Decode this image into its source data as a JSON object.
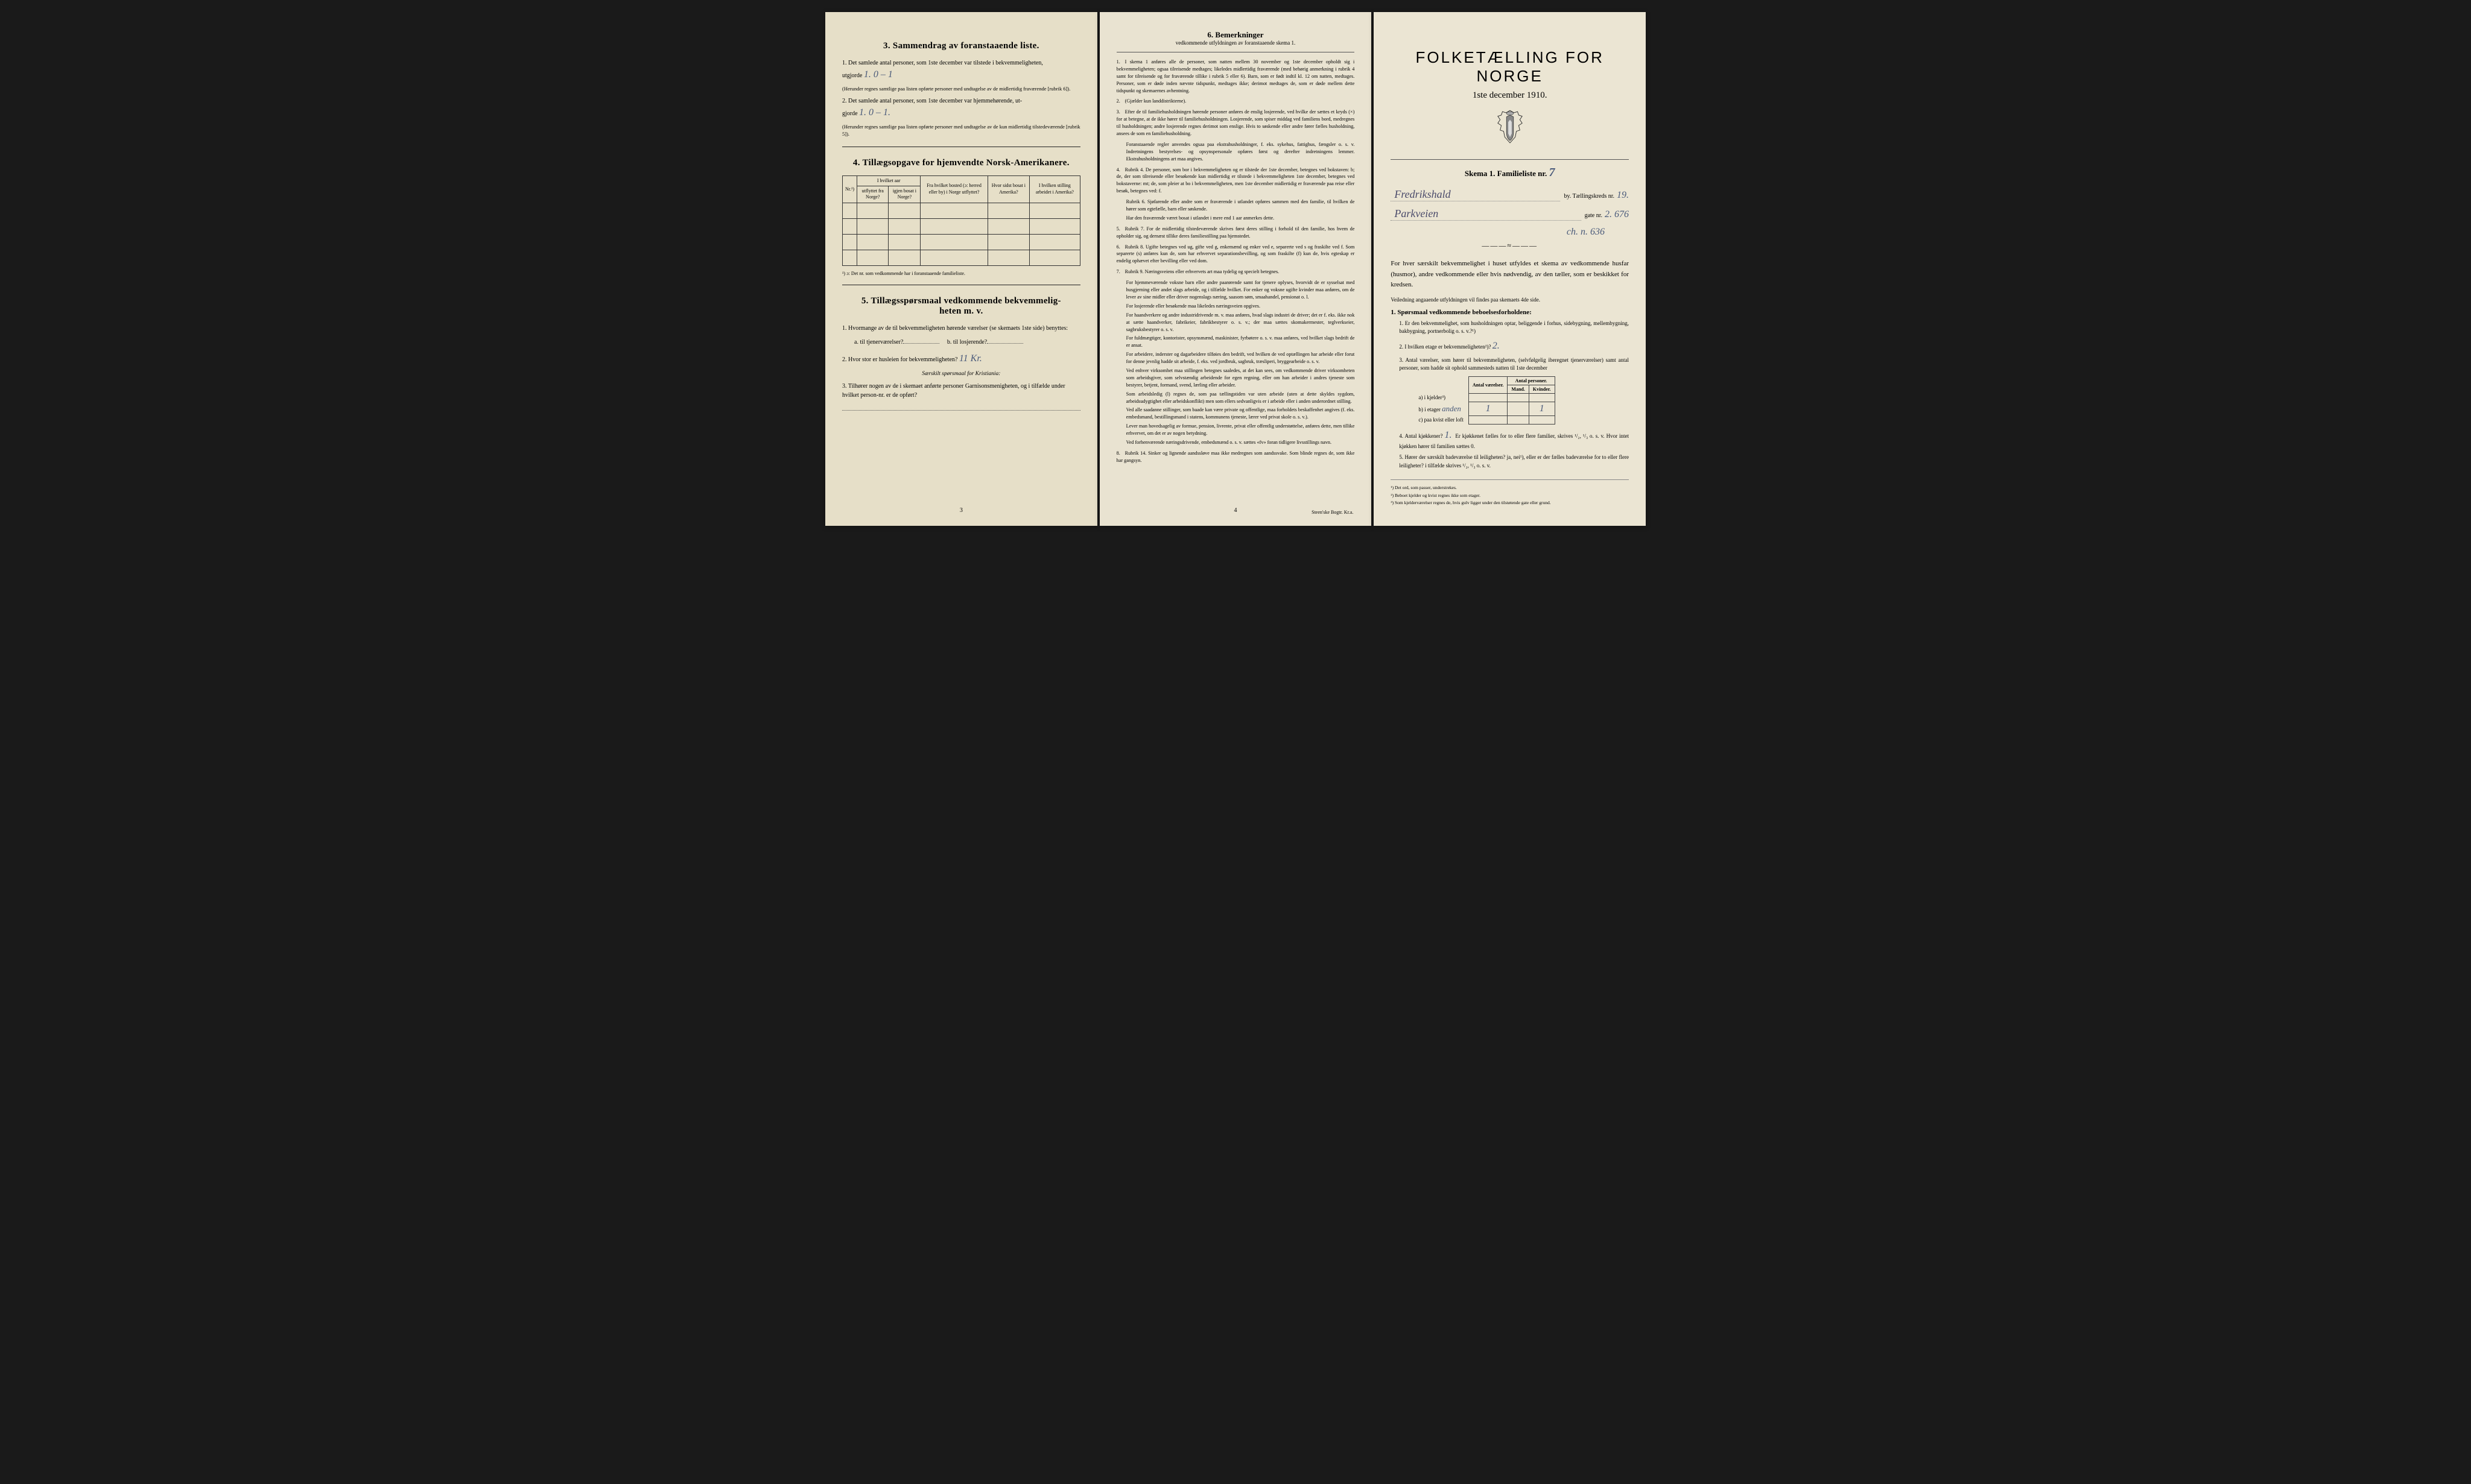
{
  "colors": {
    "paper1": "#e6dfc8",
    "paper2": "#e9e3d1",
    "paper3": "#ebe5d3",
    "ink": "#1a1a1a",
    "handwriting": "#4a5a7a"
  },
  "page1": {
    "section3": {
      "title": "3.   Sammendrag av foranstaaende liste.",
      "item1_pre": "1.  Det samlede antal personer, som 1ste december var tilstede i bekvemmeligheten,",
      "item1_label": "utgjorde",
      "item1_hw": "1.        0 – 1",
      "item1_note": "(Herunder regnes samtlige paa listen opførte personer med undtagelse av de midlertidig fraværende [rubrik 6]).",
      "item2_pre": "2.  Det samlede antal personer, som 1ste december var hjemmehørende, ut-",
      "item2_label": "gjorde",
      "item2_hw": "1.        0 – 1.",
      "item2_note": "(Herunder regnes samtlige paa listen opførte personer med undtagelse av de kun midlertidig tilstedeværende [rubrik 5])."
    },
    "section4": {
      "title": "4.   Tillægsopgave for hjemvendte Norsk-Amerikanere.",
      "headers": {
        "nr": "Nr.¹)",
        "col1_top": "I hvilket aar",
        "col1a": "utflyttet fra Norge?",
        "col1b": "igjen bosat i Norge?",
        "col2": "Fra hvilket bosted (ɔ: herred eller by) i Norge utflyttet?",
        "col3": "Hvor sidst bosat i Amerika?",
        "col4": "I hvilken stilling arbeidet i Amerika?"
      },
      "footnote": "¹) ɔ: Det nr. som vedkommende har i foranstaaende familieliste."
    },
    "section5": {
      "title": "5.   Tillægsspørsmaal vedkommende bekvemmelig-\nheten m. v.",
      "item1": "1. Hvormange av de til bekvemmeligheten hørende værelser (se skemaets 1ste side) benyttes:",
      "item1a": "a. til tjenerværelser?",
      "item1b": "b. til losjerende?",
      "item2": "2. Hvor stor er husleien for bekvemmeligheten?",
      "item2_hw": "11 Kr.",
      "kristiania": "Særskilt spørsmaal for Kristiania:",
      "item3": "3. Tilhører nogen av de i skemaet anførte personer Garnisonsmenigheten, og i tilfælde under hvilket person-nr. er de opført?"
    },
    "pagenum": "3"
  },
  "page2": {
    "title": "6.   Bemerkninger",
    "subtitle": "vedkommende utfyldningen av foranstaaende skema 1.",
    "items": [
      {
        "n": "1.",
        "t": "I skema 1 anføres alle de personer, som natten mellem 30 november og 1ste december opholdt sig i bekvemmeligheten; ogsaa tilreisende medtages; likeledes midlertidig fraværende (med behørig anmerkning i rubrik 4 samt for tilreisende og for fraværende tillike i rubrik 5 eller 6). Barn, som er født indtil kl. 12 om natten, medtages. Personer, som er døde inden nævnte tidspunkt, medtages ikke; derimot medtages de, som er døde mellem dette tidspunkt og skemaernes avhentning."
      },
      {
        "n": "2.",
        "t": "(Gjælder kun landdistrikterne)."
      },
      {
        "n": "3.",
        "t": "Efter de til familiehusholdningen hørende personer anføres de enslig losjerende, ved hvilke der sættes et kryds (×) for at betegne, at de ikke hører til familiehusholdningen. Losjerende, som spiser middag ved familiens bord, medregnes til husholdningen; andre losjerende regnes derimot som enslige. Hvis to søskende eller andre fører fælles husholdning, ansees de som en familiehusholdning."
      },
      {
        "n": "",
        "t": "Foranstaaende regler anvendes ogsaa paa ekstrahusholdninger, f. eks. sykehus, fattighus, fængsler o. s. v. Indretningens bestyrelses- og opsynspersonale opføres først og derefter indretningens lemmer. Ekstrahusholdningens art maa angives.",
        "para": true
      },
      {
        "n": "4.",
        "t": "Rubrik 4. De personer, som bor i bekvemmeligheten og er tilstede der 1ste december, betegnes ved bokstaven: b; de, der som tilreisende eller besøkende kun midlertidig er tilstede i bekvemmeligheten 1ste december, betegnes ved bokstaverne: mt; de, som pleier at bo i bekvemmeligheten, men 1ste december midlertidig er fraværende paa reise eller besøk, betegnes ved: f."
      },
      {
        "n": "",
        "t": "Rubrik 6. Sjøfarende eller andre som er fraværende i utlandet opføres sammen med den familie, til hvilken de hører som egtefælle, barn eller søskende.",
        "para": true
      },
      {
        "n": "",
        "t": "Har den fraværende været bosat i utlandet i mere end 1 aar anmerkes dette.",
        "para": true
      },
      {
        "n": "5.",
        "t": "Rubrik 7. For de midlertidig tilstedeværende skrives først deres stilling i forhold til den familie, hos hvem de opholder sig, og dernæst tillike deres familiestilling paa hjemstedet."
      },
      {
        "n": "6.",
        "t": "Rubrik 8. Ugifte betegnes ved ug, gifte ved g, enkemænd og enker ved e, separerte ved s og fraskilte ved f. Som separerte (s) anføres kun de, som har erhvervet separationsbevilling, og som fraskilte (f) kun de, hvis egteskap er endelig ophævet efter bevilling eller ved dom."
      },
      {
        "n": "7.",
        "t": "Rubrik 9. Næringsveiens eller erhvervets art maa tydelig og specielt betegnes."
      },
      {
        "n": "",
        "t": "For hjemmeværende voksne barn eller andre paarørende samt for tjenere oplyses, hvorvidt de er sysselsat med husgjerning eller andet slags arbeide, og i tilfælde hvilket. For enker og voksne ugifte kvinder maa anføres, om de lever av sine midler eller driver nogenslags næring, saasom søm, smaahandel, pensionat o. l.",
        "para": true
      },
      {
        "n": "",
        "t": "For losjerende eller besøkende maa likeledes næringsveien opgives.",
        "para": true
      },
      {
        "n": "",
        "t": "For haandverkere og andre industridrivende m. v. maa anføres, hvad slags industri de driver; det er f. eks. ikke nok at sætte haandverker, fabrikeier, fabrikbestyrer o. s. v.; der maa sættes skomakermester, teglverkseier, sagbruksbestyrer o. s. v.",
        "para": true
      },
      {
        "n": "",
        "t": "For fuldmægtiger, kontorister, opsynsmænd, maskinister, fyrbøtere o. s. v. maa anføres, ved hvilket slags bedrift de er ansat.",
        "para": true
      },
      {
        "n": "",
        "t": "For arbeidere, inderster og dagarbeidere tilføies den bedrift, ved hvilken de ved optællingen har arbeide eller forut for denne jevnlig hadde sit arbeide, f. eks. ved jordbruk, sagbruk, træsliperi, bryggearbeide o. s. v.",
        "para": true
      },
      {
        "n": "",
        "t": "Ved enhver virksomhet maa stillingen betegnes saaledes, at det kan sees, om vedkommende driver virksomheten som arbeidsgiver, som selvstændig arbeidende for egen regning, eller om han arbeider i andres tjeneste som bestyrer, betjent, formand, svend, lærling eller arbeider.",
        "para": true
      },
      {
        "n": "",
        "t": "Som arbeidsledig (l) regnes de, som paa tællingstiden var uten arbeide (uten at dette skyldes sygdom, arbeidsudygtighet eller arbeidskonflikt) men som ellers sedvanligvis er i arbeide eller i anden underordnet stilling.",
        "para": true
      },
      {
        "n": "",
        "t": "Ved alle saadanne stillinger, som baade kan være private og offentlige, maa forholdets beskaffenhet angives (f. eks. embedsmand, bestillingsmand i statens, kommunens tjeneste, lærer ved privat skole o. s. v.).",
        "para": true
      },
      {
        "n": "",
        "t": "Lever man hovedsagelig av formue, pension, livrente, privat eller offentlig understøttelse, anføres dette, men tillike erhvervet, om det er av nogen betydning.",
        "para": true
      },
      {
        "n": "",
        "t": "Ved forhenværende næringsdrivende, embedsmænd o. s. v. sættes «fv» foran tidligere livsstillings navn.",
        "para": true
      },
      {
        "n": "8.",
        "t": "Rubrik 14. Sinker og lignende aandssløve maa ikke medregnes som aandssvake. Som blinde regnes de, som ikke har gangsyn."
      }
    ],
    "pagenum": "4",
    "printer": "Steen'ske Bogtr.  Kr.a."
  },
  "page3": {
    "main_title": "FOLKETÆLLING FOR NORGE",
    "sub_title": "1ste december 1910.",
    "skema": "Skema 1.   Familieliste nr.",
    "skema_hw": "7",
    "by_hw": "Fredrikshald",
    "by_lbl": "by.  Tællingskreds nr.",
    "kreds_hw": "19.",
    "gate_hw": "Parkveien",
    "gate_lbl": "gate nr.",
    "gatenr_hw": "2.  676",
    "extra_hw": "ch. n. 636",
    "ornament": "———≈———",
    "intro": "For hver særskilt bekvemmelighet i huset utfyldes et skema av vedkommende husfar (husmor), andre vedkommende eller hvis nødvendig, av den tæller, som er beskikket for kredsen.",
    "veil": "Veiledning angaaende utfyldningen vil findes paa skemaets 4de side.",
    "q1_title": "1. Spørsmaal vedkommende beboelsesforholdene:",
    "q1": "1. Er den bekvemmelighet, som husholdningen optar, beliggende i forhus, sidebygning, mellembygning, bakbygning, portnerbolig o. s. v.?¹)",
    "q2": "2. I hvilken etage er bekvemmeligheten²)?",
    "q2_hw": "2.",
    "q3": "3. Antal værelser, som hører til bekvemmeligheten, (selvfølgelig iberegnet tjenerværelser) samt antal personer, som hadde sit ophold sammesteds natten til 1ste december",
    "rooms_table": {
      "headers": [
        "",
        "Antal værelser.",
        "Antal personer."
      ],
      "sub_headers": [
        "",
        "",
        "Mand.",
        "Kvinder."
      ],
      "rows": [
        {
          "lbl": "a) i kjelder³)",
          "v": "",
          "m": "",
          "k": ""
        },
        {
          "lbl": "b) i etager",
          "hw": "anden",
          "v": "1",
          "m": "",
          "k": "1"
        },
        {
          "lbl": "c) paa kvist eller loft",
          "v": "",
          "m": "",
          "k": ""
        }
      ]
    },
    "q4": "4. Antal kjøkkener?",
    "q4_hw": "1.",
    "q4_rest": "Er kjøkkenet fælles for to eller flere familier, skrives ¹/₂, ¹/₃ o. s. v.  Hvor intet kjøkken hører til familien sættes 0.",
    "q5": "5. Hører der særskilt badeværelse til leiligheten? ja, nei¹), eller er der fælles badeværelse for to eller flere leiligheter? i tilfælde skrives ¹/₂, ¹/₃ o. s. v.",
    "footnotes": [
      "¹) Det ord, som passer, understrekes.",
      "²) Beboet kjelder og kvist regnes ikke som etager.",
      "³) Som kjelderværelser regnes de, hvis gulv ligger under den tilstøtende gate eller grund."
    ]
  }
}
